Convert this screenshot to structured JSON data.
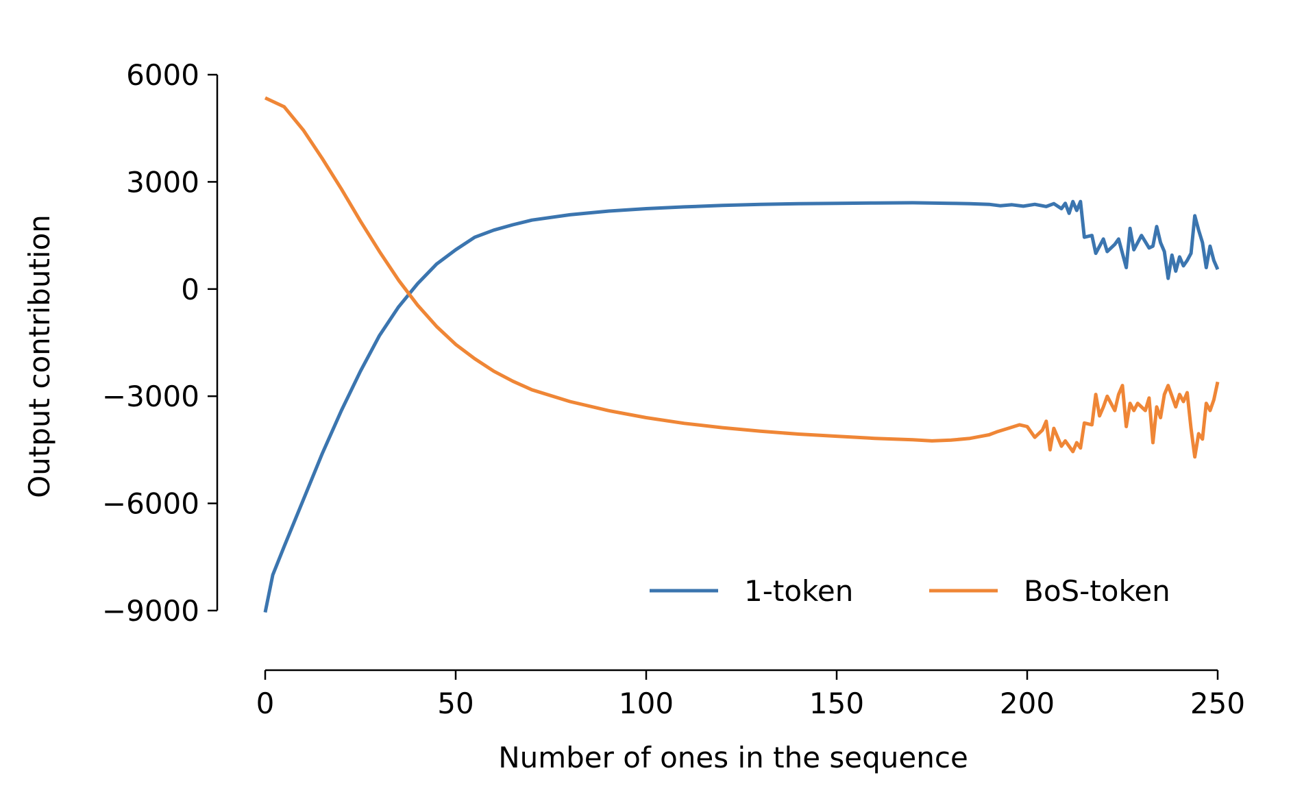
{
  "chart_data": {
    "type": "line",
    "title": "",
    "xlabel": "Number of ones in the sequence",
    "ylabel": "Output contribution",
    "xlim": [
      0,
      250
    ],
    "ylim": [
      -9000,
      6000
    ],
    "xticks": [
      0,
      50,
      100,
      150,
      200,
      250
    ],
    "xtick_labels": [
      "0",
      "50",
      "100",
      "150",
      "200",
      "250"
    ],
    "yticks": [
      -9000,
      -6000,
      -3000,
      0,
      3000,
      6000
    ],
    "ytick_labels": [
      "−9000",
      "−6000",
      "−3000",
      "0",
      "3000",
      "6000"
    ],
    "grid": false,
    "legend": "bottom-right",
    "series": [
      {
        "name": "1-token",
        "color": "#3b75af",
        "points": [
          [
            0,
            -9050
          ],
          [
            2,
            -8000
          ],
          [
            5,
            -7200
          ],
          [
            10,
            -5900
          ],
          [
            15,
            -4600
          ],
          [
            20,
            -3400
          ],
          [
            25,
            -2300
          ],
          [
            30,
            -1300
          ],
          [
            35,
            -500
          ],
          [
            40,
            150
          ],
          [
            45,
            700
          ],
          [
            50,
            1100
          ],
          [
            55,
            1450
          ],
          [
            60,
            1650
          ],
          [
            65,
            1800
          ],
          [
            70,
            1930
          ],
          [
            80,
            2080
          ],
          [
            90,
            2180
          ],
          [
            100,
            2250
          ],
          [
            110,
            2300
          ],
          [
            120,
            2340
          ],
          [
            130,
            2370
          ],
          [
            140,
            2390
          ],
          [
            150,
            2400
          ],
          [
            160,
            2410
          ],
          [
            170,
            2415
          ],
          [
            180,
            2400
          ],
          [
            185,
            2390
          ],
          [
            190,
            2370
          ],
          [
            193,
            2330
          ],
          [
            196,
            2360
          ],
          [
            199,
            2320
          ],
          [
            202,
            2370
          ],
          [
            205,
            2310
          ],
          [
            207,
            2390
          ],
          [
            209,
            2250
          ],
          [
            210,
            2400
          ],
          [
            211,
            2120
          ],
          [
            212,
            2450
          ],
          [
            213,
            2200
          ],
          [
            214,
            2450
          ],
          [
            215,
            1450
          ],
          [
            217,
            1500
          ],
          [
            218,
            1000
          ],
          [
            220,
            1400
          ],
          [
            221,
            1050
          ],
          [
            223,
            1250
          ],
          [
            224,
            1400
          ],
          [
            226,
            600
          ],
          [
            227,
            1700
          ],
          [
            228,
            1100
          ],
          [
            230,
            1500
          ],
          [
            232,
            1150
          ],
          [
            233,
            1200
          ],
          [
            234,
            1750
          ],
          [
            235,
            1300
          ],
          [
            236,
            1050
          ],
          [
            237,
            300
          ],
          [
            238,
            950
          ],
          [
            239,
            500
          ],
          [
            240,
            900
          ],
          [
            241,
            650
          ],
          [
            242,
            800
          ],
          [
            243,
            1000
          ],
          [
            244,
            2050
          ],
          [
            245,
            1650
          ],
          [
            246,
            1300
          ],
          [
            247,
            600
          ],
          [
            248,
            1200
          ],
          [
            249,
            800
          ],
          [
            250,
            550
          ]
        ]
      },
      {
        "name": "BoS-token",
        "color": "#ef8636",
        "points": [
          [
            0,
            5350
          ],
          [
            5,
            5100
          ],
          [
            10,
            4450
          ],
          [
            15,
            3650
          ],
          [
            20,
            2800
          ],
          [
            25,
            1900
          ],
          [
            30,
            1050
          ],
          [
            35,
            250
          ],
          [
            40,
            -450
          ],
          [
            45,
            -1050
          ],
          [
            50,
            -1550
          ],
          [
            55,
            -1950
          ],
          [
            60,
            -2300
          ],
          [
            65,
            -2580
          ],
          [
            70,
            -2820
          ],
          [
            80,
            -3150
          ],
          [
            90,
            -3400
          ],
          [
            100,
            -3600
          ],
          [
            110,
            -3760
          ],
          [
            120,
            -3880
          ],
          [
            130,
            -3980
          ],
          [
            140,
            -4060
          ],
          [
            150,
            -4120
          ],
          [
            160,
            -4180
          ],
          [
            170,
            -4220
          ],
          [
            175,
            -4250
          ],
          [
            180,
            -4230
          ],
          [
            185,
            -4180
          ],
          [
            188,
            -4120
          ],
          [
            190,
            -4080
          ],
          [
            192,
            -4000
          ],
          [
            195,
            -3900
          ],
          [
            198,
            -3800
          ],
          [
            200,
            -3850
          ],
          [
            202,
            -4150
          ],
          [
            204,
            -3950
          ],
          [
            205,
            -3700
          ],
          [
            206,
            -4500
          ],
          [
            207,
            -3900
          ],
          [
            209,
            -4400
          ],
          [
            210,
            -4250
          ],
          [
            212,
            -4550
          ],
          [
            213,
            -4300
          ],
          [
            214,
            -4450
          ],
          [
            215,
            -3750
          ],
          [
            217,
            -3800
          ],
          [
            218,
            -2950
          ],
          [
            219,
            -3550
          ],
          [
            220,
            -3300
          ],
          [
            221,
            -3000
          ],
          [
            223,
            -3400
          ],
          [
            224,
            -2950
          ],
          [
            225,
            -2700
          ],
          [
            226,
            -3850
          ],
          [
            227,
            -3200
          ],
          [
            228,
            -3400
          ],
          [
            229,
            -3200
          ],
          [
            231,
            -3400
          ],
          [
            232,
            -3050
          ],
          [
            233,
            -4300
          ],
          [
            234,
            -3300
          ],
          [
            235,
            -3600
          ],
          [
            236,
            -2950
          ],
          [
            237,
            -2700
          ],
          [
            238,
            -3000
          ],
          [
            239,
            -3300
          ],
          [
            240,
            -2950
          ],
          [
            241,
            -3150
          ],
          [
            242,
            -2900
          ],
          [
            243,
            -3900
          ],
          [
            244,
            -4700
          ],
          [
            245,
            -4050
          ],
          [
            246,
            -4200
          ],
          [
            247,
            -3200
          ],
          [
            248,
            -3400
          ],
          [
            249,
            -3100
          ],
          [
            250,
            -2600
          ]
        ]
      }
    ]
  }
}
